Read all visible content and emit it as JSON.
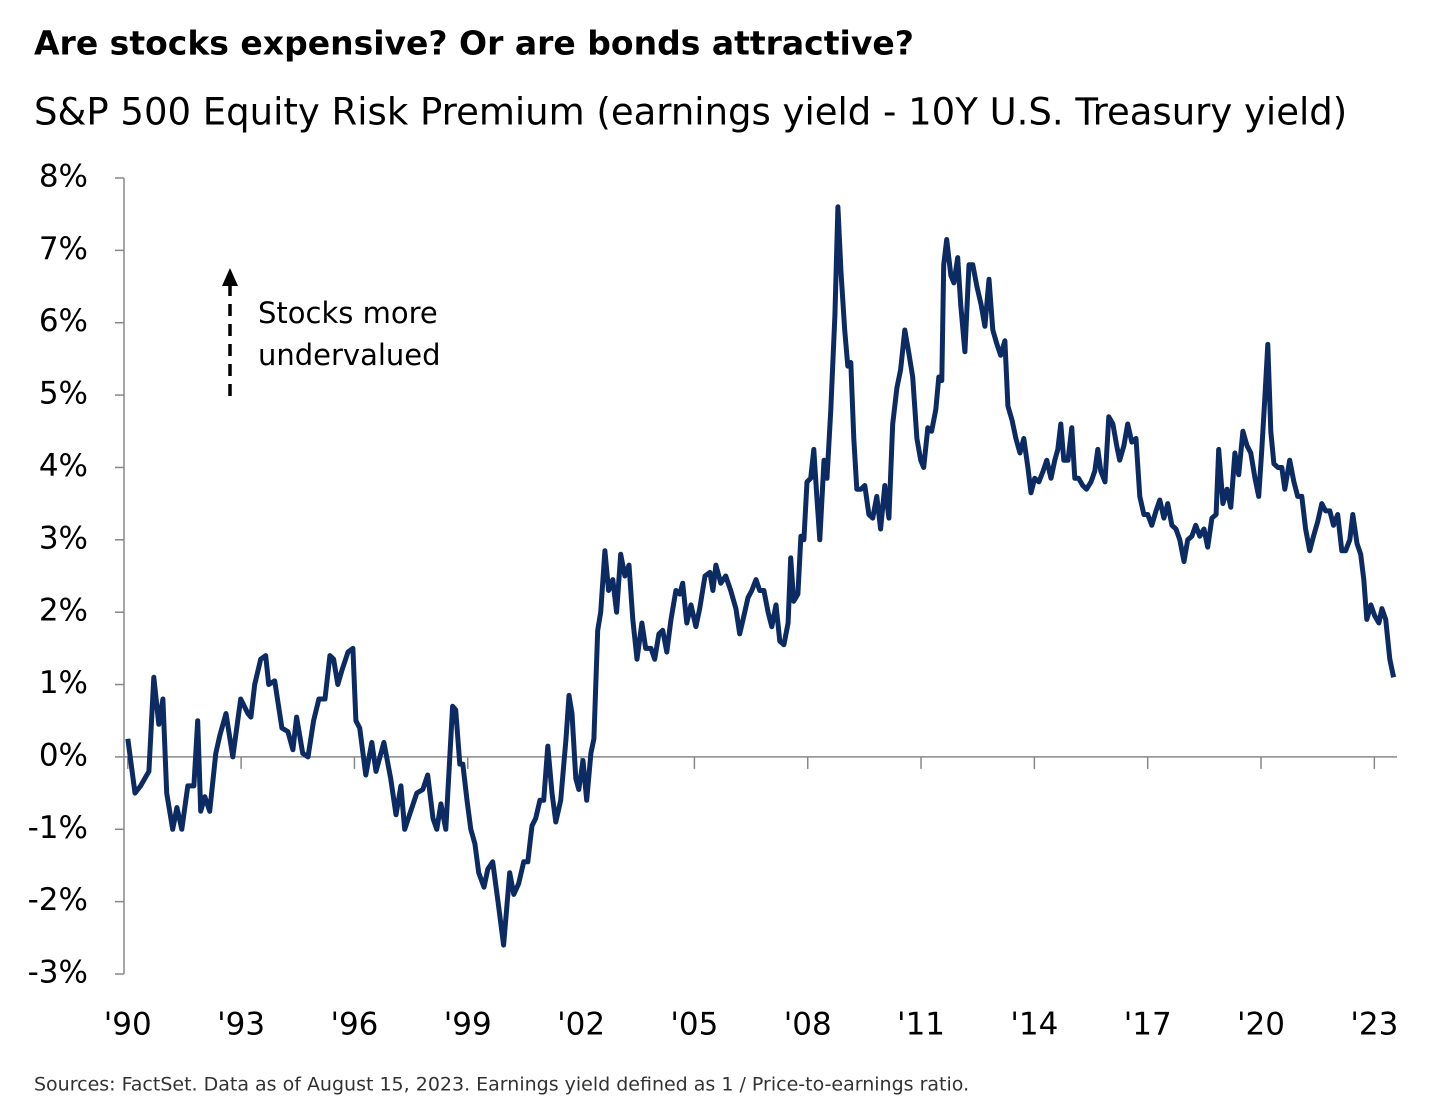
{
  "chart_data": {
    "type": "line",
    "title": "Are stocks expensive? Or are bonds attractive?",
    "subtitle": "S&P 500 Equity Risk Premium (earnings yield - 10Y U.S. Treasury yield)",
    "annotation": [
      "Stocks more",
      "undervalued"
    ],
    "source": "Sources: FactSet. Data as of August 15, 2023. Earnings yield defined as 1 / Price-to-earnings ratio.",
    "xlim": [
      1989.9,
      2023.6
    ],
    "xticks": [
      {
        "value": 1990,
        "label": "'90"
      },
      {
        "value": 1993,
        "label": "'93"
      },
      {
        "value": 1996,
        "label": "'96"
      },
      {
        "value": 1999,
        "label": "'99"
      },
      {
        "value": 2002,
        "label": "'02"
      },
      {
        "value": 2005,
        "label": "'05"
      },
      {
        "value": 2008,
        "label": "'08"
      },
      {
        "value": 2011,
        "label": "'11"
      },
      {
        "value": 2014,
        "label": "'14"
      },
      {
        "value": 2017,
        "label": "'17"
      },
      {
        "value": 2020,
        "label": "'20"
      },
      {
        "value": 2023,
        "label": "'23"
      }
    ],
    "ylim": [
      -3,
      8
    ],
    "yticks": [
      {
        "value": 8,
        "label": "8%"
      },
      {
        "value": 7,
        "label": "7%"
      },
      {
        "value": 6,
        "label": "6%"
      },
      {
        "value": 5,
        "label": "5%"
      },
      {
        "value": 4,
        "label": "4%"
      },
      {
        "value": 3,
        "label": "3%"
      },
      {
        "value": 2,
        "label": "2%"
      },
      {
        "value": 1,
        "label": "1%"
      },
      {
        "value": 0,
        "label": "0%"
      },
      {
        "value": -1,
        "label": "-1%"
      },
      {
        "value": -2,
        "label": "-2%"
      },
      {
        "value": -3,
        "label": "-3%"
      }
    ],
    "series": [
      {
        "color": "#0d2b63",
        "x": [
          1990.0,
          1990.19,
          1990.34,
          1990.56,
          1990.69,
          1990.82,
          1990.93,
          1991.03,
          1991.19,
          1991.3,
          1991.43,
          1991.59,
          1991.75,
          1991.85,
          1991.93,
          1992.04,
          1992.17,
          1992.33,
          1992.44,
          1992.6,
          1992.78,
          1992.99,
          1993.18,
          1993.26,
          1993.36,
          1993.52,
          1993.65,
          1993.73,
          1993.89,
          1994.08,
          1994.24,
          1994.37,
          1994.47,
          1994.63,
          1994.77,
          1994.92,
          1995.06,
          1995.22,
          1995.35,
          1995.45,
          1995.56,
          1995.67,
          1995.83,
          1995.96,
          1996.04,
          1996.14,
          1996.3,
          1996.46,
          1996.57,
          1996.78,
          1996.96,
          1997.1,
          1997.23,
          1997.33,
          1997.49,
          1997.65,
          1997.81,
          1997.94,
          1998.08,
          1998.18,
          1998.29,
          1998.42,
          1998.6,
          1998.68,
          1998.79,
          1998.87,
          1998.98,
          1999.08,
          1999.19,
          1999.29,
          1999.43,
          1999.53,
          1999.66,
          1999.8,
          1999.95,
          2000.11,
          2000.22,
          2000.35,
          2000.48,
          2000.59,
          2000.7,
          2000.8,
          2000.91,
          2001.01,
          2001.12,
          2001.23,
          2001.33,
          2001.46,
          2001.6,
          2001.68,
          2001.76,
          2001.86,
          2001.94,
          2002.05,
          2002.15,
          2002.26,
          2002.34,
          2002.44,
          2002.52,
          2002.63,
          2002.73,
          2002.84,
          2002.94,
          2003.05,
          2003.16,
          2003.27,
          2003.37,
          2003.48,
          2003.61,
          2003.71,
          2003.85,
          2003.95,
          2004.06,
          2004.16,
          2004.27,
          2004.38,
          2004.51,
          2004.61,
          2004.69,
          2004.8,
          2004.91,
          2005.04,
          2005.14,
          2005.28,
          2005.41,
          2005.49,
          2005.57,
          2005.7,
          2005.83,
          2005.96,
          2006.1,
          2006.2,
          2006.31,
          2006.42,
          2006.52,
          2006.63,
          2006.73,
          2006.84,
          2006.95,
          2007.05,
          2007.16,
          2007.26,
          2007.37,
          2007.48,
          2007.55,
          2007.63,
          2007.74,
          2007.82,
          2007.9,
          2007.98,
          2008.08,
          2008.16,
          2008.24,
          2008.32,
          2008.43,
          2008.51,
          2008.61,
          2008.72,
          2008.8,
          2008.88,
          2008.98,
          2009.06,
          2009.14,
          2009.22,
          2009.3,
          2009.41,
          2009.51,
          2009.62,
          2009.72,
          2009.83,
          2009.93,
          2010.04,
          2010.15,
          2010.25,
          2010.36,
          2010.46,
          2010.57,
          2010.67,
          2010.78,
          2010.89,
          2010.99,
          2011.07,
          2011.18,
          2011.28,
          2011.39,
          2011.47,
          2011.55,
          2011.6,
          2011.68,
          2011.79,
          2011.87,
          2011.97,
          2012.05,
          2012.16,
          2012.27,
          2012.37,
          2012.48,
          2012.59,
          2012.69,
          2012.8,
          2012.9,
          2013.01,
          2013.11,
          2013.22,
          2013.3,
          2013.41,
          2013.51,
          2013.62,
          2013.72,
          2013.83,
          2013.91,
          2014.01,
          2014.12,
          2014.23,
          2014.33,
          2014.44,
          2014.54,
          2014.62,
          2014.7,
          2014.78,
          2014.89,
          2014.99,
          2015.07,
          2015.17,
          2015.28,
          2015.38,
          2015.5,
          2015.6,
          2015.68,
          2015.76,
          2015.87,
          2015.97,
          2016.08,
          2016.18,
          2016.26,
          2016.37,
          2016.47,
          2016.58,
          2016.69,
          2016.79,
          2016.9,
          2017.0,
          2017.11,
          2017.22,
          2017.32,
          2017.43,
          2017.53,
          2017.64,
          2017.75,
          2017.85,
          2017.96,
          2018.06,
          2018.17,
          2018.27,
          2018.38,
          2018.49,
          2018.59,
          2018.7,
          2018.81,
          2018.88,
          2018.99,
          2019.1,
          2019.2,
          2019.31,
          2019.41,
          2019.52,
          2019.63,
          2019.73,
          2019.84,
          2019.94,
          2020.02,
          2020.1,
          2020.18,
          2020.26,
          2020.34,
          2020.45,
          2020.55,
          2020.63,
          2020.76,
          2020.87,
          2020.97,
          2021.08,
          2021.18,
          2021.29,
          2021.39,
          2021.5,
          2021.61,
          2021.71,
          2021.82,
          2021.92,
          2022.03,
          2022.14,
          2022.24,
          2022.35,
          2022.43,
          2022.54,
          2022.64,
          2022.72,
          2022.8,
          2022.91,
          2023.01,
          2023.12,
          2023.2,
          2023.3,
          2023.41,
          2023.51
        ],
        "values": [
          0.25,
          -0.5,
          -0.4,
          -0.2,
          1.1,
          0.45,
          0.8,
          -0.5,
          -1.0,
          -0.7,
          -1.0,
          -0.4,
          -0.4,
          0.5,
          -0.75,
          -0.55,
          -0.75,
          0.05,
          0.3,
          0.6,
          0.0,
          0.8,
          0.6,
          0.55,
          1.0,
          1.35,
          1.4,
          1.0,
          1.05,
          0.4,
          0.35,
          0.1,
          0.55,
          0.05,
          0.0,
          0.5,
          0.8,
          0.8,
          1.4,
          1.35,
          1.0,
          1.2,
          1.45,
          1.5,
          0.5,
          0.4,
          -0.25,
          0.2,
          -0.2,
          0.2,
          -0.3,
          -0.8,
          -0.4,
          -1.0,
          -0.75,
          -0.5,
          -0.45,
          -0.25,
          -0.85,
          -1.0,
          -0.65,
          -1.0,
          0.7,
          0.65,
          -0.1,
          -0.1,
          -0.6,
          -1.0,
          -1.2,
          -1.6,
          -1.8,
          -1.55,
          -1.45,
          -2.0,
          -2.6,
          -1.6,
          -1.9,
          -1.75,
          -1.45,
          -1.45,
          -0.95,
          -0.85,
          -0.6,
          -0.6,
          0.15,
          -0.5,
          -0.9,
          -0.6,
          0.25,
          0.85,
          0.6,
          -0.3,
          -0.45,
          -0.05,
          -0.6,
          0.05,
          0.25,
          1.75,
          2.0,
          2.85,
          2.3,
          2.45,
          2.0,
          2.8,
          2.5,
          2.65,
          1.9,
          1.35,
          1.85,
          1.5,
          1.5,
          1.35,
          1.7,
          1.75,
          1.45,
          1.9,
          2.3,
          2.25,
          2.4,
          1.85,
          2.1,
          1.8,
          2.05,
          2.5,
          2.55,
          2.3,
          2.65,
          2.4,
          2.5,
          2.3,
          2.05,
          1.7,
          1.95,
          2.2,
          2.3,
          2.45,
          2.3,
          2.3,
          2.0,
          1.8,
          2.1,
          1.6,
          1.55,
          1.85,
          2.75,
          2.15,
          2.25,
          3.05,
          3.0,
          3.8,
          3.85,
          4.25,
          3.6,
          3.0,
          4.1,
          3.85,
          4.8,
          6.1,
          7.6,
          6.7,
          5.9,
          5.4,
          5.45,
          4.4,
          3.7,
          3.7,
          3.75,
          3.35,
          3.3,
          3.6,
          3.15,
          3.75,
          3.3,
          4.6,
          5.1,
          5.35,
          5.9,
          5.6,
          5.25,
          4.4,
          4.1,
          4.0,
          4.55,
          4.5,
          4.8,
          5.25,
          5.2,
          6.8,
          7.15,
          6.65,
          6.55,
          6.9,
          6.25,
          5.6,
          6.8,
          6.8,
          6.5,
          6.25,
          5.95,
          6.6,
          5.9,
          5.7,
          5.55,
          5.75,
          4.85,
          4.65,
          4.4,
          4.2,
          4.4,
          4.0,
          3.65,
          3.85,
          3.8,
          3.95,
          4.1,
          3.85,
          4.1,
          4.25,
          4.6,
          4.1,
          4.1,
          4.55,
          3.85,
          3.85,
          3.75,
          3.7,
          3.8,
          3.95,
          4.25,
          3.95,
          3.8,
          4.7,
          4.6,
          4.3,
          4.1,
          4.3,
          4.6,
          4.35,
          4.4,
          3.6,
          3.35,
          3.35,
          3.2,
          3.4,
          3.55,
          3.3,
          3.5,
          3.2,
          3.15,
          3.0,
          2.7,
          3.0,
          3.05,
          3.2,
          3.05,
          3.15,
          2.9,
          3.3,
          3.35,
          4.25,
          3.5,
          3.7,
          3.45,
          4.2,
          3.9,
          4.5,
          4.3,
          4.2,
          3.85,
          3.6,
          4.25,
          4.95,
          5.7,
          4.5,
          4.05,
          4.0,
          4.0,
          3.7,
          4.1,
          3.8,
          3.6,
          3.6,
          3.15,
          2.85,
          3.05,
          3.25,
          3.5,
          3.4,
          3.4,
          3.2,
          3.35,
          2.85,
          2.85,
          3.0,
          3.35,
          2.95,
          2.8,
          2.45,
          1.9,
          2.1,
          1.95,
          1.85,
          2.05,
          1.9,
          1.35,
          1.1
        ]
      }
    ]
  }
}
